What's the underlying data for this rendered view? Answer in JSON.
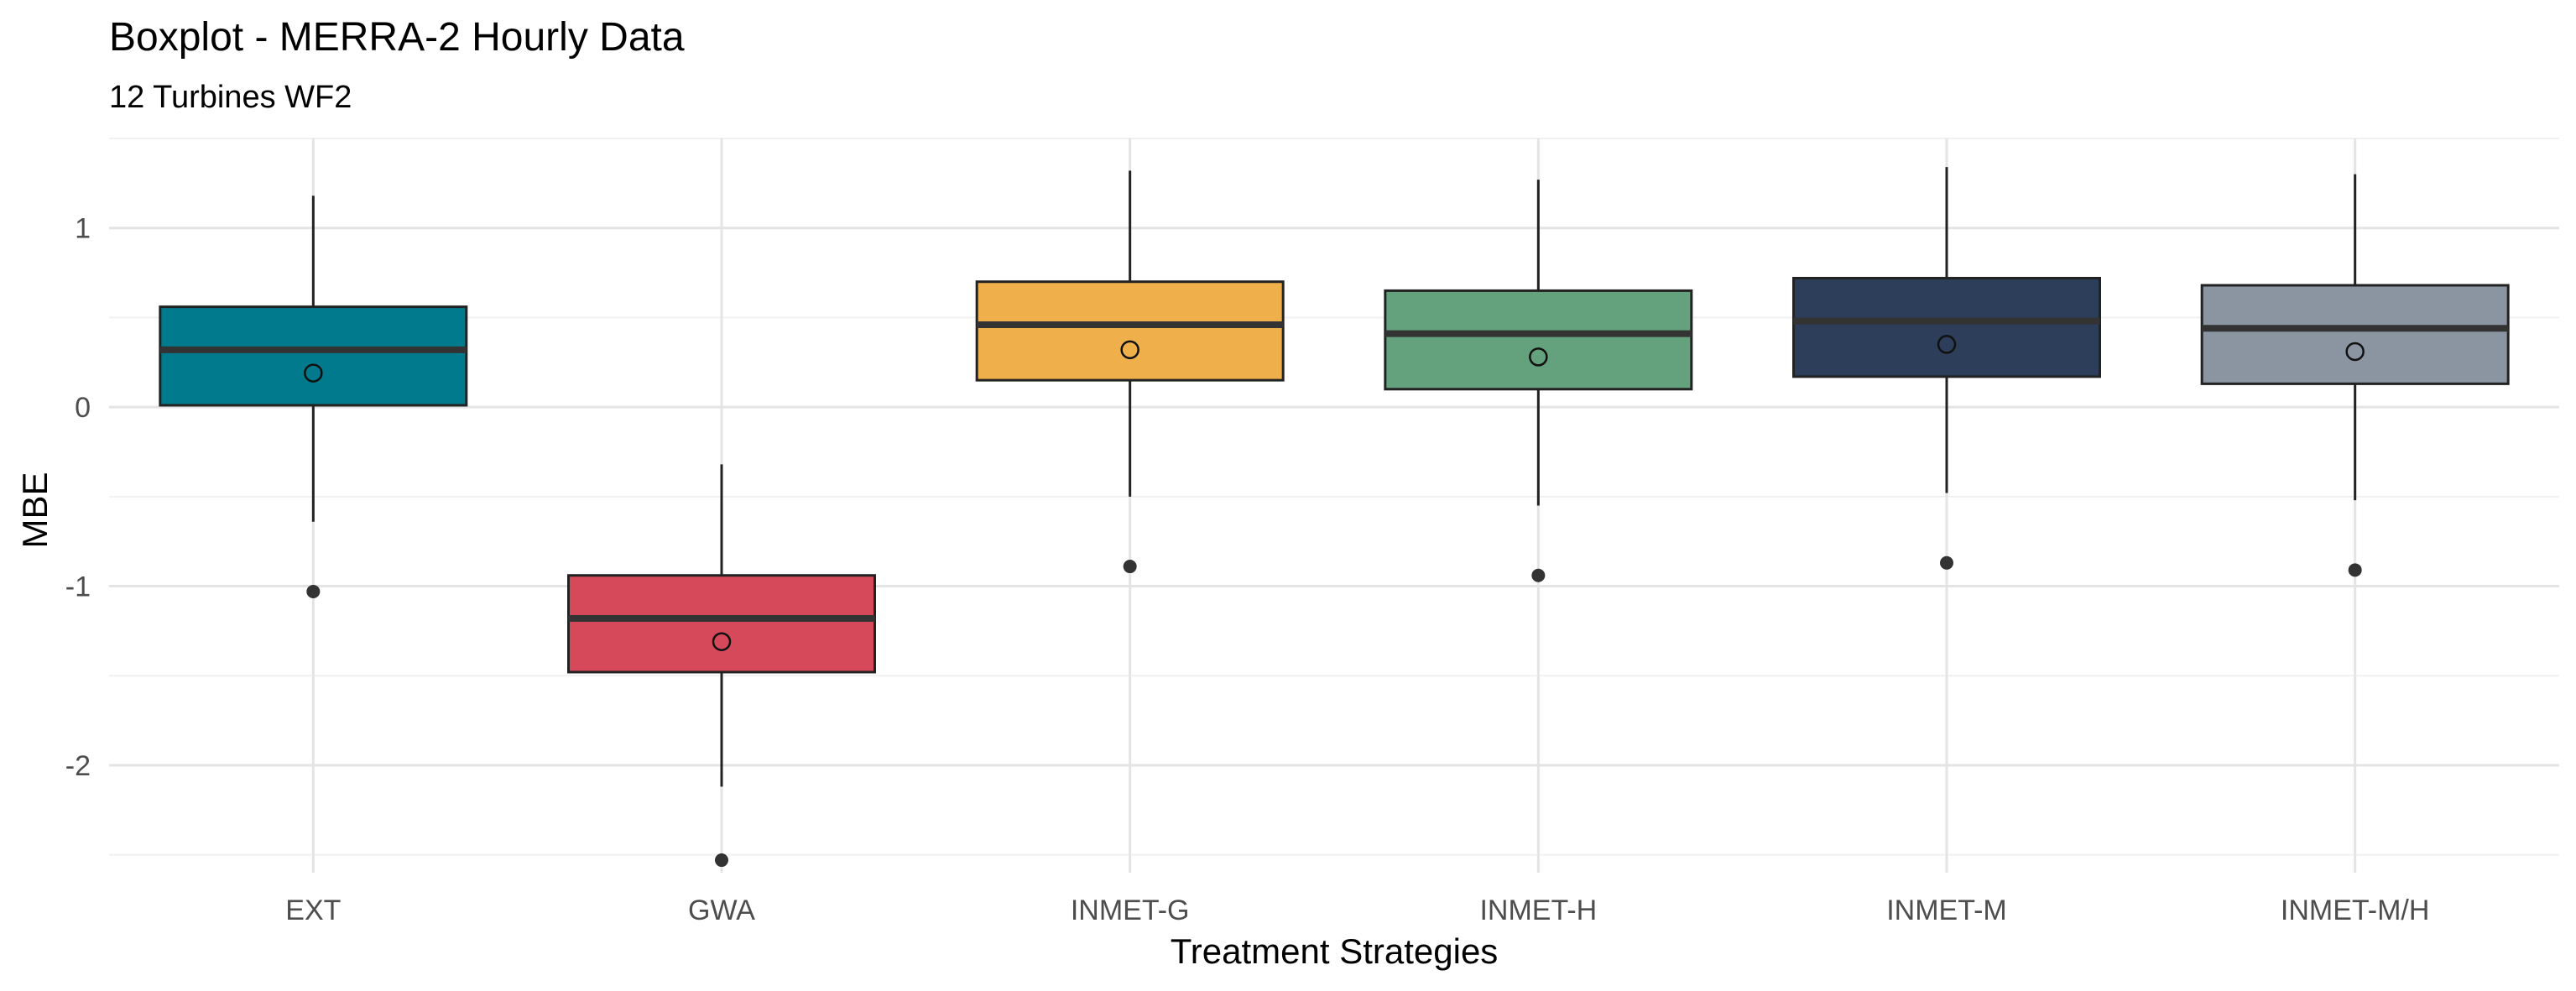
{
  "chart_data": {
    "type": "boxplot",
    "title": "Boxplot - MERRA-2 Hourly Data",
    "subtitle": "12 Turbines WF2",
    "xlabel": "Treatment Strategies",
    "ylabel": "MBE",
    "ylim": [
      -2.6,
      1.5
    ],
    "yticks": [
      {
        "value": 1,
        "label": "1"
      },
      {
        "value": 0,
        "label": "0"
      },
      {
        "value": -1,
        "label": "-1"
      },
      {
        "value": -2,
        "label": "-2"
      }
    ],
    "grid": true,
    "categories": [
      "EXT",
      "GWA",
      "INMET-G",
      "INMET-H",
      "INMET-M",
      "INMET-M/H"
    ],
    "boxes": [
      {
        "category": "EXT",
        "whisker_low": -0.64,
        "q1": 0.01,
        "median": 0.32,
        "q3": 0.56,
        "whisker_high": 1.18,
        "mean": 0.19,
        "outliers": [
          -1.03
        ],
        "color": "#007A8C"
      },
      {
        "category": "GWA",
        "whisker_low": -2.12,
        "q1": -1.48,
        "median": -1.18,
        "q3": -0.94,
        "whisker_high": -0.32,
        "mean": -1.31,
        "outliers": [
          -2.53
        ],
        "color": "#D5495A"
      },
      {
        "category": "INMET-G",
        "whisker_low": -0.5,
        "q1": 0.15,
        "median": 0.46,
        "q3": 0.7,
        "whisker_high": 1.32,
        "mean": 0.32,
        "outliers": [
          -0.89
        ],
        "color": "#EFB04B"
      },
      {
        "category": "INMET-H",
        "whisker_low": -0.55,
        "q1": 0.1,
        "median": 0.41,
        "q3": 0.65,
        "whisker_high": 1.27,
        "mean": 0.28,
        "outliers": [
          -0.94
        ],
        "color": "#63A27D"
      },
      {
        "category": "INMET-M",
        "whisker_low": -0.48,
        "q1": 0.17,
        "median": 0.48,
        "q3": 0.72,
        "whisker_high": 1.34,
        "mean": 0.35,
        "outliers": [
          -0.87
        ],
        "color": "#2C3E5A"
      },
      {
        "category": "INMET-M/H",
        "whisker_low": -0.52,
        "q1": 0.13,
        "median": 0.44,
        "q3": 0.68,
        "whisker_high": 1.3,
        "mean": 0.31,
        "outliers": [
          -0.91
        ],
        "color": "#8B95A2"
      }
    ]
  }
}
